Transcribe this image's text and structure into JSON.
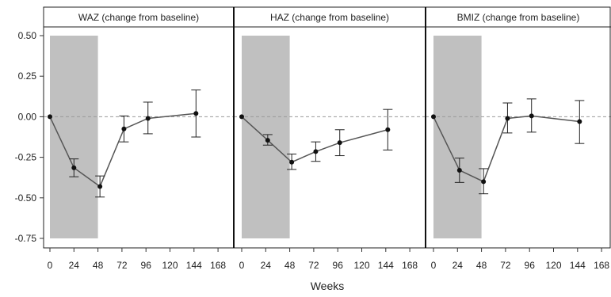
{
  "chart_data": {
    "type": "line",
    "layout": "three side-by-side panels sharing y axis",
    "xlabel": "Weeks",
    "ylabel": "",
    "ylim": [
      -0.8,
      0.55
    ],
    "yticks": [
      0.5,
      0.25,
      0.0,
      -0.25,
      -0.5,
      -0.75
    ],
    "ytick_labels": [
      "0.50",
      "0.25",
      "0.00",
      "-0.25",
      "-0.50",
      "-0.75"
    ],
    "xlim": [
      -6,
      174
    ],
    "xticks": [
      0,
      24,
      48,
      72,
      96,
      120,
      144,
      168
    ],
    "xtick_labels": [
      "0",
      "24",
      "48",
      "72",
      "96",
      "120",
      "144",
      "168"
    ],
    "reference_line": {
      "y": 0.0,
      "style": "dashed"
    },
    "shaded_region": {
      "x": [
        0,
        48
      ],
      "y": [
        -0.75,
        0.5
      ],
      "color": "#c0c0c0"
    },
    "series_color": "#555555",
    "marker_color": "#111111",
    "panels": [
      {
        "title": "WAZ (change from baseline)",
        "points": [
          {
            "x": 0,
            "y": 0.0
          },
          {
            "x": 24,
            "y": -0.315,
            "lo": -0.37,
            "hi": -0.26
          },
          {
            "x": 50,
            "y": -0.43,
            "lo": -0.495,
            "hi": -0.365
          },
          {
            "x": 74,
            "y": -0.075,
            "lo": -0.155,
            "hi": 0.005
          },
          {
            "x": 98,
            "y": -0.01,
            "lo": -0.105,
            "hi": 0.09
          },
          {
            "x": 146,
            "y": 0.02,
            "lo": -0.125,
            "hi": 0.165
          }
        ]
      },
      {
        "title": "HAZ (change from baseline)",
        "points": [
          {
            "x": 0,
            "y": 0.0
          },
          {
            "x": 26,
            "y": -0.145,
            "lo": -0.175,
            "hi": -0.11
          },
          {
            "x": 50,
            "y": -0.28,
            "lo": -0.325,
            "hi": -0.23
          },
          {
            "x": 74,
            "y": -0.215,
            "lo": -0.275,
            "hi": -0.155
          },
          {
            "x": 98,
            "y": -0.16,
            "lo": -0.24,
            "hi": -0.08
          },
          {
            "x": 146,
            "y": -0.08,
            "lo": -0.205,
            "hi": 0.045
          }
        ]
      },
      {
        "title": "BMIZ (change from baseline)",
        "points": [
          {
            "x": 0,
            "y": 0.0
          },
          {
            "x": 26,
            "y": -0.33,
            "lo": -0.405,
            "hi": -0.255
          },
          {
            "x": 50,
            "y": -0.4,
            "lo": -0.475,
            "hi": -0.32
          },
          {
            "x": 74,
            "y": -0.01,
            "lo": -0.1,
            "hi": 0.085
          },
          {
            "x": 98,
            "y": 0.005,
            "lo": -0.095,
            "hi": 0.11
          },
          {
            "x": 146,
            "y": -0.03,
            "lo": -0.165,
            "hi": 0.1
          }
        ]
      }
    ]
  }
}
